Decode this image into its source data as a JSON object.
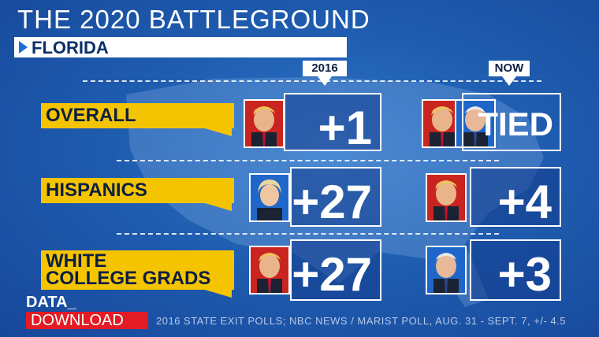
{
  "title": "THE 2020 BATTLEGROUND",
  "state": "FLORIDA",
  "columns": {
    "left": "2016",
    "right": "NOW"
  },
  "rows": [
    {
      "label": "OVERALL",
      "left_value": "+1",
      "right_value": "TIED"
    },
    {
      "label": "HISPANICS",
      "left_value": "+27",
      "right_value": "+4"
    },
    {
      "label_line1": "WHITE",
      "label_line2": "COLLEGE GRADS",
      "left_value": "+27",
      "right_value": "+3"
    }
  ],
  "footer": {
    "brand_top": "DATA_",
    "brand_bottom": "DOWNLOAD",
    "source": "2016 STATE EXIT POLLS; NBC NEWS / MARIST POLL, AUG. 31 - SEPT. 7, +/- 4.5"
  },
  "colors": {
    "label_yellow": "#f5c400",
    "rep_red": "#c9241f",
    "dem_blue": "#1f66c9",
    "brand_red": "#e31b23"
  }
}
